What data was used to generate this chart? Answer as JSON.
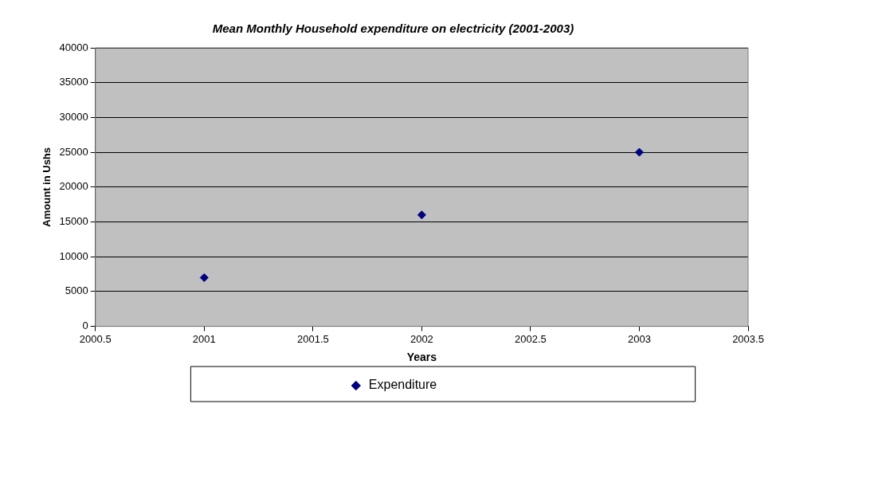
{
  "chart_data": {
    "type": "scatter",
    "title": "Mean Monthly Household expenditure on electricity (2001-2003)",
    "xlabel": "Years",
    "ylabel": "Amount in Ushs",
    "x": [
      2001,
      2002,
      2003
    ],
    "series": [
      {
        "name": "Expenditure",
        "color": "#000080",
        "values": [
          7000,
          16000,
          25000
        ]
      }
    ],
    "xlim": [
      2000.5,
      2003.5
    ],
    "xticks": [
      2000.5,
      2001,
      2001.5,
      2002,
      2002.5,
      2003,
      2003.5
    ],
    "ylim": [
      0,
      40000
    ],
    "yticks": [
      0,
      5000,
      10000,
      15000,
      20000,
      25000,
      30000,
      35000,
      40000
    ],
    "grid": "y",
    "legend": "bottom",
    "marker": "diamond"
  }
}
